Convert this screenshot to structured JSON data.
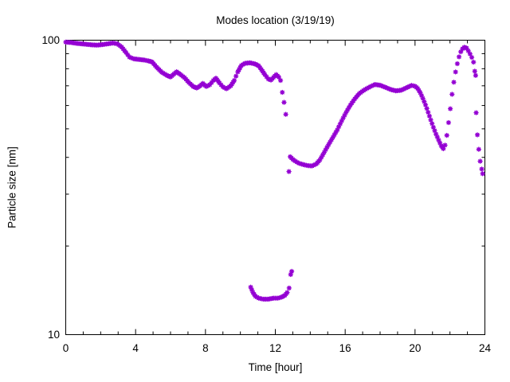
{
  "chart_data": {
    "type": "scatter",
    "title": "Modes location (3/19/19)",
    "xlabel": "Time [hour]",
    "ylabel": "Particle size [nm]",
    "x_range": [
      0,
      24
    ],
    "y_range": [
      10,
      100
    ],
    "y_scale": "log",
    "x_major_ticks": [
      0,
      4,
      8,
      12,
      16,
      20,
      24
    ],
    "x_minor_tick_step": 1,
    "y_major_ticks": [
      100,
      10
    ],
    "y_minor_ticks": [
      20,
      30,
      40,
      50,
      60,
      70,
      80,
      90
    ],
    "grid": "off",
    "legend": "none",
    "marker": "asterisk",
    "marker_color": "#9400d3",
    "axis_color": "#000000",
    "background_color": "#ffffff",
    "sample_step_hours": 0.08,
    "series": [
      {
        "name": "upper-mode-morning",
        "interpolate": true,
        "points": [
          [
            0.0,
            98.5
          ],
          [
            0.3,
            98.2
          ],
          [
            0.6,
            97.6
          ],
          [
            0.9,
            97.2
          ],
          [
            1.2,
            96.8
          ],
          [
            1.5,
            96.4
          ],
          [
            1.8,
            96.2
          ],
          [
            2.1,
            96.6
          ],
          [
            2.4,
            97.2
          ],
          [
            2.7,
            97.8
          ],
          [
            2.95,
            97.2
          ],
          [
            3.2,
            94.8
          ],
          [
            3.45,
            90.8
          ],
          [
            3.65,
            87.6
          ],
          [
            3.9,
            86.4
          ],
          [
            4.2,
            86.0
          ],
          [
            4.5,
            85.6
          ],
          [
            4.75,
            85.0
          ],
          [
            4.95,
            84.3
          ],
          [
            5.2,
            81.0
          ],
          [
            5.5,
            77.8
          ],
          [
            5.8,
            75.9
          ],
          [
            6.0,
            75.0
          ],
          [
            6.2,
            76.8
          ],
          [
            6.35,
            78.1
          ],
          [
            6.55,
            76.6
          ],
          [
            6.8,
            74.6
          ],
          [
            7.05,
            71.8
          ],
          [
            7.3,
            69.6
          ],
          [
            7.5,
            68.8
          ],
          [
            7.7,
            70.0
          ],
          [
            7.85,
            71.3
          ],
          [
            8.05,
            69.6
          ],
          [
            8.25,
            70.6
          ],
          [
            8.45,
            73.0
          ],
          [
            8.6,
            74.3
          ],
          [
            8.8,
            71.6
          ],
          [
            9.0,
            69.4
          ],
          [
            9.2,
            68.4
          ],
          [
            9.45,
            70.0
          ],
          [
            9.65,
            73.0
          ],
          [
            9.85,
            78.0
          ],
          [
            10.05,
            82.0
          ],
          [
            10.25,
            83.4
          ],
          [
            10.55,
            83.8
          ],
          [
            10.85,
            83.0
          ],
          [
            11.05,
            81.8
          ],
          [
            11.2,
            79.5
          ],
          [
            11.4,
            76.4
          ],
          [
            11.6,
            73.8
          ],
          [
            11.75,
            73.2
          ],
          [
            11.9,
            74.8
          ],
          [
            12.05,
            76.4
          ],
          [
            12.2,
            74.9
          ],
          [
            12.3,
            73.0
          ]
        ]
      },
      {
        "name": "upper-mode-afternoon",
        "interpolate": true,
        "points": [
          [
            12.85,
            40.2
          ],
          [
            13.0,
            39.4
          ],
          [
            13.15,
            38.8
          ],
          [
            13.35,
            38.2
          ],
          [
            13.6,
            37.8
          ],
          [
            13.85,
            37.5
          ],
          [
            14.1,
            37.4
          ],
          [
            14.35,
            38.0
          ],
          [
            14.55,
            39.2
          ],
          [
            14.8,
            41.6
          ],
          [
            15.05,
            44.2
          ],
          [
            15.3,
            46.8
          ],
          [
            15.55,
            49.6
          ],
          [
            15.8,
            53.2
          ],
          [
            16.05,
            56.8
          ],
          [
            16.3,
            60.2
          ],
          [
            16.55,
            63.2
          ],
          [
            16.8,
            65.8
          ],
          [
            17.05,
            67.5
          ],
          [
            17.25,
            68.6
          ],
          [
            17.45,
            69.6
          ],
          [
            17.7,
            70.7
          ],
          [
            18.0,
            70.3
          ],
          [
            18.3,
            69.2
          ],
          [
            18.6,
            68.0
          ],
          [
            18.9,
            67.3
          ],
          [
            19.2,
            67.6
          ],
          [
            19.5,
            68.9
          ],
          [
            19.8,
            70.2
          ],
          [
            20.0,
            69.8
          ],
          [
            20.15,
            68.6
          ],
          [
            20.3,
            66.3
          ],
          [
            20.45,
            63.4
          ],
          [
            20.6,
            60.3
          ],
          [
            20.75,
            56.9
          ],
          [
            20.9,
            53.6
          ],
          [
            21.05,
            50.6
          ],
          [
            21.2,
            48.0
          ],
          [
            21.35,
            45.8
          ],
          [
            21.5,
            43.8
          ],
          [
            21.62,
            42.8
          ],
          [
            21.72,
            44.0
          ],
          [
            21.82,
            47.5
          ],
          [
            21.92,
            52.5
          ],
          [
            22.02,
            58.5
          ],
          [
            22.12,
            65.5
          ],
          [
            22.22,
            72.0
          ],
          [
            22.32,
            78.0
          ],
          [
            22.42,
            83.2
          ],
          [
            22.52,
            87.8
          ],
          [
            22.62,
            91.3
          ],
          [
            22.72,
            93.5
          ],
          [
            22.82,
            94.6
          ],
          [
            22.95,
            94.0
          ],
          [
            23.05,
            92.0
          ],
          [
            23.15,
            89.8
          ],
          [
            23.25,
            87.4
          ],
          [
            23.35,
            84.2
          ],
          [
            23.42,
            78.5
          ],
          [
            23.47,
            75.9
          ]
        ]
      },
      {
        "name": "lower-mode",
        "interpolate": true,
        "points": [
          [
            10.59,
            14.5
          ],
          [
            10.72,
            13.9
          ],
          [
            10.86,
            13.5
          ],
          [
            11.05,
            13.3
          ],
          [
            11.3,
            13.2
          ],
          [
            11.6,
            13.2
          ],
          [
            11.9,
            13.3
          ],
          [
            12.15,
            13.3
          ],
          [
            12.35,
            13.4
          ],
          [
            12.55,
            13.6
          ],
          [
            12.68,
            13.9
          ],
          [
            12.79,
            14.4
          ]
        ]
      },
      {
        "name": "transition-points",
        "interpolate": false,
        "points": [
          [
            12.4,
            66.5
          ],
          [
            12.5,
            61.5
          ],
          [
            12.6,
            56.0
          ],
          [
            12.78,
            35.8
          ],
          [
            12.88,
            16.0
          ],
          [
            12.94,
            16.4
          ],
          [
            23.5,
            56.7
          ],
          [
            23.57,
            47.7
          ],
          [
            23.65,
            42.6
          ],
          [
            23.73,
            38.8
          ],
          [
            23.82,
            36.5
          ],
          [
            23.87,
            35.2
          ]
        ]
      }
    ]
  }
}
